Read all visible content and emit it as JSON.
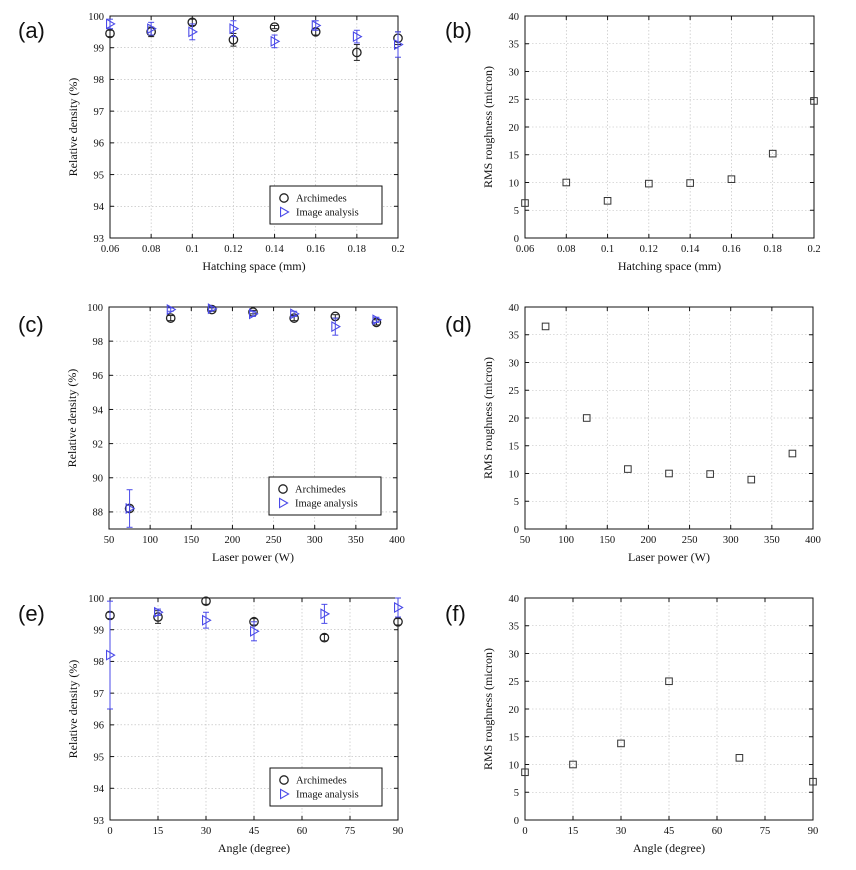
{
  "figure": {
    "marker_colors": {
      "archimedes": "#222222",
      "image": "#4a4ae8",
      "roughness": "#333333"
    }
  },
  "chart_data": [
    {
      "id": "a",
      "panel_label": "(a)",
      "type": "scatter",
      "xlabel": "Hatching space (mm)",
      "ylabel": "Relative density (%)",
      "xlim": [
        0.06,
        0.2
      ],
      "ylim": [
        93,
        100
      ],
      "xticks": [
        0.06,
        0.08,
        0.1,
        0.12,
        0.14,
        0.16,
        0.18,
        0.2
      ],
      "xtick_labels": [
        "0.06",
        "0.08",
        "0.1",
        "0.12",
        "0.14",
        "0.16",
        "0.18",
        "0.2"
      ],
      "yticks": [
        93,
        94,
        95,
        96,
        97,
        98,
        99,
        100
      ],
      "ytick_labels": [
        "93",
        "94",
        "95",
        "96",
        "97",
        "98",
        "99",
        "100"
      ],
      "grid": true,
      "legend": {
        "position": "bottom-right",
        "entries": [
          "Archimedes",
          "Image analysis"
        ]
      },
      "series": [
        {
          "name": "Archimedes",
          "marker": "circle",
          "x": [
            0.06,
            0.08,
            0.1,
            0.12,
            0.14,
            0.16,
            0.18,
            0.2
          ],
          "y": [
            99.45,
            99.5,
            99.8,
            99.25,
            99.65,
            99.5,
            98.85,
            99.3
          ],
          "err": [
            0.1,
            0.15,
            0.1,
            0.2,
            0.05,
            0.1,
            0.25,
            0.2
          ]
        },
        {
          "name": "Image analysis",
          "marker": "triangle-right",
          "x": [
            0.06,
            0.08,
            0.1,
            0.12,
            0.14,
            0.16,
            0.18,
            0.2
          ],
          "y": [
            99.75,
            99.6,
            99.5,
            99.6,
            99.2,
            99.7,
            99.35,
            99.1
          ],
          "err": [
            0.15,
            0.2,
            0.25,
            0.25,
            0.2,
            0.15,
            0.2,
            0.4
          ]
        }
      ]
    },
    {
      "id": "b",
      "panel_label": "(b)",
      "type": "scatter",
      "xlabel": "Hatching space (mm)",
      "ylabel": "RMS roughness (micron)",
      "xlim": [
        0.06,
        0.2
      ],
      "ylim": [
        0,
        40
      ],
      "xticks": [
        0.06,
        0.08,
        0.1,
        0.12,
        0.14,
        0.16,
        0.18,
        0.2
      ],
      "xtick_labels": [
        "0.06",
        "0.08",
        "0.1",
        "0.12",
        "0.14",
        "0.16",
        "0.18",
        "0.2"
      ],
      "yticks": [
        0,
        5,
        10,
        15,
        20,
        25,
        30,
        35,
        40
      ],
      "ytick_labels": [
        "0",
        "5",
        "10",
        "15",
        "20",
        "25",
        "30",
        "35",
        "40"
      ],
      "grid": true,
      "series": [
        {
          "marker": "square",
          "x": [
            0.06,
            0.08,
            0.1,
            0.12,
            0.14,
            0.16,
            0.18,
            0.2
          ],
          "y": [
            6.3,
            10,
            6.7,
            9.8,
            9.9,
            10.6,
            15.2,
            24.7
          ]
        }
      ]
    },
    {
      "id": "c",
      "panel_label": "(c)",
      "type": "scatter",
      "xlabel": "Laser power (W)",
      "ylabel": "Relative density (%)",
      "xlim": [
        50,
        400
      ],
      "ylim": [
        87,
        100
      ],
      "xticks": [
        50,
        100,
        150,
        200,
        250,
        300,
        350,
        400
      ],
      "xtick_labels": [
        "50",
        "100",
        "150",
        "200",
        "250",
        "300",
        "350",
        "400"
      ],
      "yticks": [
        88,
        90,
        92,
        94,
        96,
        98,
        100
      ],
      "ytick_labels": [
        "88",
        "90",
        "92",
        "94",
        "96",
        "98",
        "100"
      ],
      "grid": true,
      "legend": {
        "position": "bottom-right",
        "entries": [
          "Archimedes",
          "Image analysis"
        ]
      },
      "series": [
        {
          "name": "Archimedes",
          "marker": "circle",
          "x": [
            75,
            125,
            175,
            225,
            275,
            325,
            375
          ],
          "y": [
            88.2,
            99.35,
            99.85,
            99.7,
            99.35,
            99.45,
            99.1
          ],
          "err": [
            0.2,
            0.15,
            0.1,
            0.1,
            0.15,
            0.1,
            0.15
          ]
        },
        {
          "name": "Image analysis",
          "marker": "triangle-right",
          "x": [
            75,
            125,
            175,
            225,
            275,
            325,
            375
          ],
          "y": [
            88.2,
            99.85,
            99.9,
            99.6,
            99.6,
            98.85,
            99.25
          ],
          "err": [
            1.1,
            0.1,
            0.1,
            0.15,
            0.15,
            0.5,
            0.15
          ]
        }
      ]
    },
    {
      "id": "d",
      "panel_label": "(d)",
      "type": "scatter",
      "xlabel": "Laser power (W)",
      "ylabel": "RMS roughness (micron)",
      "xlim": [
        50,
        400
      ],
      "ylim": [
        0,
        40
      ],
      "xticks": [
        50,
        100,
        150,
        200,
        250,
        300,
        350,
        400
      ],
      "xtick_labels": [
        "50",
        "100",
        "150",
        "200",
        "250",
        "300",
        "350",
        "400"
      ],
      "yticks": [
        0,
        5,
        10,
        15,
        20,
        25,
        30,
        35,
        40
      ],
      "ytick_labels": [
        "0",
        "5",
        "10",
        "15",
        "20",
        "25",
        "30",
        "35",
        "40"
      ],
      "grid": true,
      "series": [
        {
          "marker": "square",
          "x": [
            75,
            125,
            175,
            225,
            275,
            325,
            375
          ],
          "y": [
            36.5,
            20,
            10.8,
            10,
            9.9,
            8.9,
            13.6
          ]
        }
      ]
    },
    {
      "id": "e",
      "panel_label": "(e)",
      "type": "scatter",
      "xlabel": "Angle (degree)",
      "ylabel": "Relative density (%)",
      "xlim": [
        0,
        90
      ],
      "ylim": [
        93,
        100
      ],
      "xticks": [
        0,
        15,
        30,
        45,
        60,
        75,
        90
      ],
      "xtick_labels": [
        "0",
        "15",
        "30",
        "45",
        "60",
        "75",
        "90"
      ],
      "yticks": [
        93,
        94,
        95,
        96,
        97,
        98,
        99,
        100
      ],
      "ytick_labels": [
        "93",
        "94",
        "95",
        "96",
        "97",
        "98",
        "99",
        "100"
      ],
      "grid": true,
      "legend": {
        "position": "bottom-right",
        "entries": [
          "Archimedes",
          "Image analysis"
        ]
      },
      "series": [
        {
          "name": "Archimedes",
          "marker": "circle",
          "x": [
            0,
            15,
            30,
            45,
            67,
            90
          ],
          "y": [
            99.45,
            99.4,
            99.9,
            99.25,
            98.75,
            99.25
          ],
          "err": [
            0.1,
            0.2,
            0.1,
            0.1,
            0.1,
            0.1
          ]
        },
        {
          "name": "Image analysis",
          "marker": "triangle-right",
          "x": [
            0,
            15,
            30,
            45,
            67,
            90
          ],
          "y": [
            98.2,
            99.55,
            99.3,
            98.95,
            99.5,
            99.7
          ],
          "err": [
            1.7,
            0.1,
            0.25,
            0.3,
            0.3,
            0.3
          ]
        }
      ]
    },
    {
      "id": "f",
      "panel_label": "(f)",
      "type": "scatter",
      "xlabel": "Angle (degree)",
      "ylabel": "RMS roughness (micron)",
      "xlim": [
        0,
        90
      ],
      "ylim": [
        0,
        40
      ],
      "xticks": [
        0,
        15,
        30,
        45,
        60,
        75,
        90
      ],
      "xtick_labels": [
        "0",
        "15",
        "30",
        "45",
        "60",
        "75",
        "90"
      ],
      "yticks": [
        0,
        5,
        10,
        15,
        20,
        25,
        30,
        35,
        40
      ],
      "ytick_labels": [
        "0",
        "5",
        "10",
        "15",
        "20",
        "25",
        "30",
        "35",
        "40"
      ],
      "grid": true,
      "series": [
        {
          "marker": "square",
          "x": [
            0,
            15,
            30,
            45,
            67,
            90
          ],
          "y": [
            8.6,
            10,
            13.8,
            25,
            11.2,
            6.9
          ]
        }
      ]
    }
  ]
}
